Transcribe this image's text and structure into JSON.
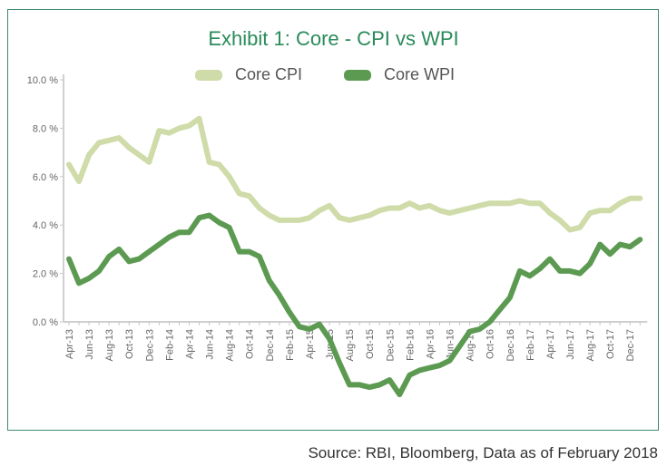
{
  "chart_data": {
    "type": "line",
    "title": "Exhibit 1: Core - CPI vs WPI",
    "xlabel": "",
    "ylabel": "",
    "ylim": [
      0,
      10
    ],
    "yticks": [
      "0.0 %",
      "2.0 %",
      "4.0 %",
      "6.0 %",
      "8.0 %",
      "10.0 %"
    ],
    "ytick_values": [
      0,
      2,
      4,
      6,
      8,
      10
    ],
    "grid": false,
    "legend_position": "top-center",
    "x": [
      "Apr-13",
      "May-13",
      "Jun-13",
      "Jul-13",
      "Aug-13",
      "Sep-13",
      "Oct-13",
      "Nov-13",
      "Dec-13",
      "Jan-14",
      "Feb-14",
      "Mar-14",
      "Apr-14",
      "May-14",
      "Jun-14",
      "Jul-14",
      "Aug-14",
      "Sep-14",
      "Oct-14",
      "Nov-14",
      "Dec-14",
      "Jan-15",
      "Feb-15",
      "Mar-15",
      "Apr-15",
      "May-15",
      "Jun-15",
      "Jul-15",
      "Aug-15",
      "Sep-15",
      "Oct-15",
      "Nov-15",
      "Dec-15",
      "Jan-16",
      "Feb-16",
      "Mar-16",
      "Apr-16",
      "May-16",
      "Jun-16",
      "Jul-16",
      "Aug-16",
      "Sep-16",
      "Oct-16",
      "Nov-16",
      "Dec-16",
      "Jan-17",
      "Feb-17",
      "Mar-17",
      "Apr-17",
      "May-17",
      "Jun-17",
      "Jul-17",
      "Aug-17",
      "Sep-17",
      "Oct-17",
      "Nov-17",
      "Dec-17",
      "Jan-18"
    ],
    "xtick_labels": [
      "Apr-13",
      "Jun-13",
      "Aug-13",
      "Oct-13",
      "Dec-13",
      "Feb-14",
      "Apr-14",
      "Jun-14",
      "Aug-14",
      "Oct-14",
      "Dec-14",
      "Feb-15",
      "Apr-15",
      "Jun-15",
      "Aug-15",
      "Oct-15",
      "Dec-15",
      "Feb-16",
      "Apr-16",
      "Jun-16",
      "Aug-16",
      "Oct-16",
      "Dec-16",
      "Feb-17",
      "Apr-17",
      "Jun-17",
      "Aug-17",
      "Oct-17",
      "Dec-17"
    ],
    "series": [
      {
        "name": "Core CPI",
        "color": "#cfdba8",
        "values": [
          6.5,
          5.8,
          6.9,
          7.4,
          7.5,
          7.6,
          7.2,
          6.9,
          6.6,
          7.9,
          7.8,
          8.0,
          8.1,
          8.4,
          6.6,
          6.5,
          6.0,
          5.3,
          5.2,
          4.7,
          4.4,
          4.2,
          4.2,
          4.2,
          4.3,
          4.6,
          4.8,
          4.3,
          4.2,
          4.3,
          4.4,
          4.6,
          4.7,
          4.7,
          4.9,
          4.7,
          4.8,
          4.6,
          4.5,
          4.6,
          4.7,
          4.8,
          4.9,
          4.9,
          4.9,
          5.0,
          4.9,
          4.9,
          4.5,
          4.2,
          3.8,
          3.9,
          4.5,
          4.6,
          4.6,
          4.9,
          5.1,
          5.1
        ]
      },
      {
        "name": "Core WPI",
        "color": "#5c9a52",
        "values": [
          2.6,
          1.6,
          1.8,
          2.1,
          2.7,
          3.0,
          2.5,
          2.6,
          2.9,
          3.2,
          3.5,
          3.7,
          3.7,
          4.3,
          4.4,
          4.1,
          3.9,
          2.9,
          2.9,
          2.7,
          1.7,
          1.1,
          0.4,
          -0.2,
          -0.3,
          -0.1,
          -0.7,
          -1.7,
          -2.6,
          -2.6,
          -2.7,
          -2.6,
          -2.4,
          -3.0,
          -2.2,
          -2.0,
          -1.9,
          -1.8,
          -1.6,
          -1.0,
          -0.4,
          -0.3,
          0.0,
          0.5,
          1.0,
          2.1,
          1.9,
          2.2,
          2.6,
          2.1,
          2.1,
          2.0,
          2.4,
          3.2,
          2.8,
          3.2,
          3.1,
          3.4
        ]
      }
    ]
  },
  "source_note": "Source: RBI, Bloomberg, Data as of February 2018"
}
